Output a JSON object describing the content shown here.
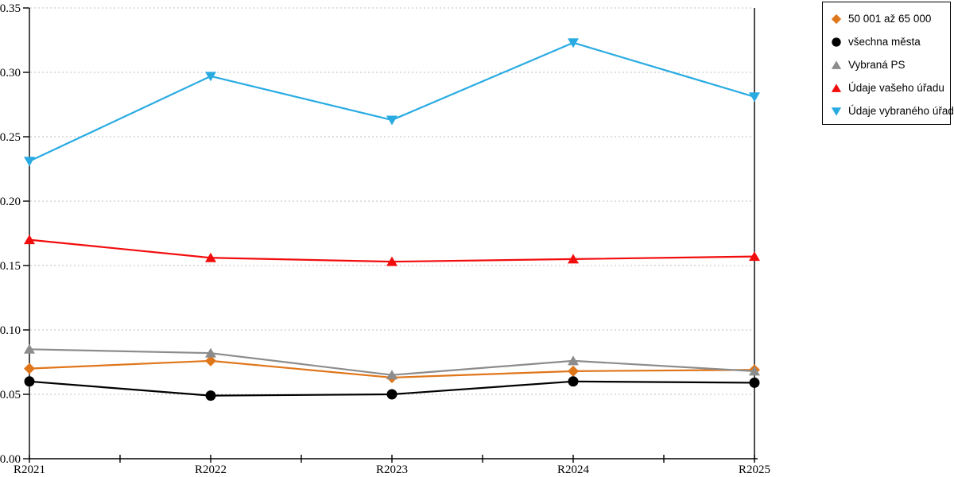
{
  "chart_data": {
    "type": "line",
    "title": "",
    "xlabel": "",
    "ylabel": "",
    "x": [
      "R2021",
      "R2022",
      "R2023",
      "R2024",
      "R2025"
    ],
    "x_minor_ticks_between_categories": true,
    "y_axis": {
      "min": 0,
      "max": 0.35,
      "tick_step": 0.05,
      "tick_labels": [
        "0.00",
        "0.05",
        "0.10",
        "0.15",
        "0.20",
        "0.25",
        "0.30",
        "0.35"
      ]
    },
    "grid": {
      "horizontal": true,
      "vertical": false,
      "style": "dashed",
      "color": "#bfbfbf"
    },
    "axis_color": "#000000",
    "plot_border": "left-right-bottom",
    "legend": {
      "position": "top-right",
      "border_color": "#000000",
      "background": "#ffffff"
    },
    "series": [
      {
        "name": "50 001 až 65 000",
        "color": "#e0761a",
        "marker": "diamond",
        "values": [
          0.07,
          0.076,
          0.063,
          0.068,
          0.069
        ]
      },
      {
        "name": "všechna města",
        "color": "#000000",
        "marker": "circle",
        "values": [
          0.06,
          0.049,
          0.05,
          0.06,
          0.059
        ]
      },
      {
        "name": "Vybraná PS",
        "color": "#8c8c8c",
        "marker": "triangle-up",
        "values": [
          0.085,
          0.082,
          0.065,
          0.076,
          0.068
        ]
      },
      {
        "name": "Údaje vašeho úřadu",
        "color": "#f20d0d",
        "marker": "triangle-up",
        "values": [
          0.17,
          0.156,
          0.153,
          0.155,
          0.157
        ]
      },
      {
        "name": "Údaje vybraného úřadu",
        "color": "#29abe2",
        "marker": "triangle-down",
        "values": [
          0.231,
          0.297,
          0.263,
          0.323,
          0.281
        ]
      }
    ]
  }
}
